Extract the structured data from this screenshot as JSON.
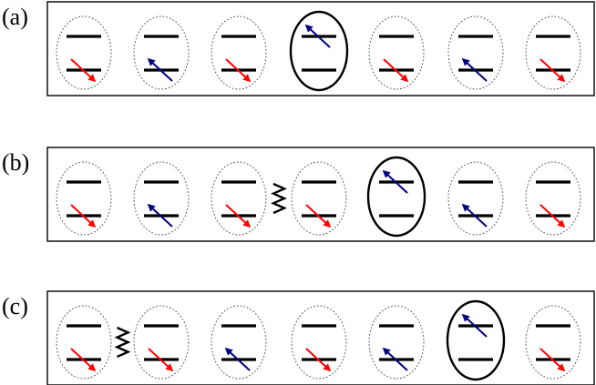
{
  "colors": {
    "spin_down": "#ff0000",
    "spin_up": "#000080",
    "frame": "#000000"
  },
  "panels": [
    {
      "label": "(a)",
      "sites": [
        "down",
        "up",
        "down",
        "up",
        "down",
        "up",
        "down"
      ],
      "excited_site": 3,
      "zigzag_after_site": null
    },
    {
      "label": "(b)",
      "sites": [
        "down",
        "up",
        "down",
        "down",
        "up",
        "up",
        "down"
      ],
      "excited_site": 4,
      "zigzag_after_site": 2
    },
    {
      "label": "(c)",
      "sites": [
        "down",
        "down",
        "up",
        "down",
        "up",
        "up",
        "down"
      ],
      "excited_site": 5,
      "zigzag_after_site": 0
    }
  ]
}
